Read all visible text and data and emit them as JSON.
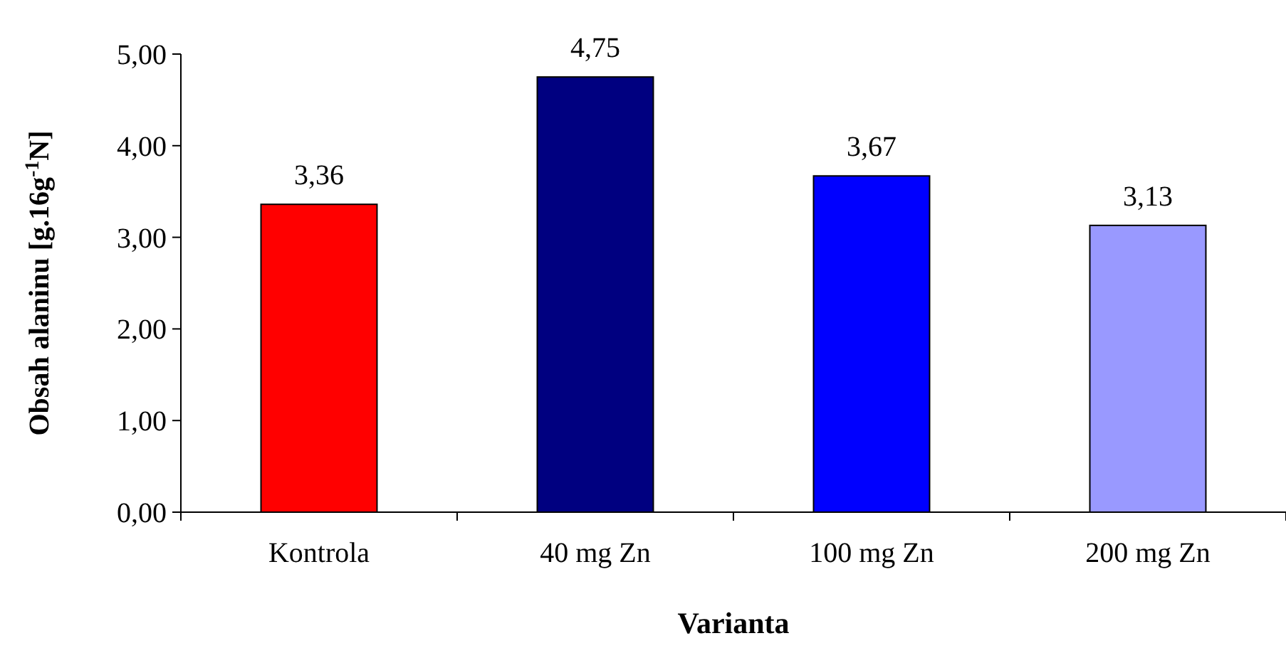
{
  "chart_data": {
    "type": "bar",
    "xlabel": "Varianta",
    "ylabel": "Obsah alaninu [g.16g$^{-1}$N]",
    "categories": [
      "Kontrola",
      "40 mg Zn",
      "100 mg Zn",
      "200 mg Zn"
    ],
    "values": [
      3.36,
      4.75,
      3.67,
      3.13
    ],
    "colors": [
      "#ff0000",
      "#000080",
      "#0000ff",
      "#9999ff"
    ],
    "value_labels": [
      "3,36",
      "4,75",
      "3,67",
      "3,13"
    ],
    "ylim": [
      0,
      5
    ],
    "yticks": [
      {
        "value": 0,
        "label": "0,00"
      },
      {
        "value": 1,
        "label": "1,00"
      },
      {
        "value": 2,
        "label": "2,00"
      },
      {
        "value": 3,
        "label": "3,00"
      },
      {
        "value": 4,
        "label": "4,00"
      },
      {
        "value": 5,
        "label": "5,00"
      }
    ],
    "grid": false
  }
}
